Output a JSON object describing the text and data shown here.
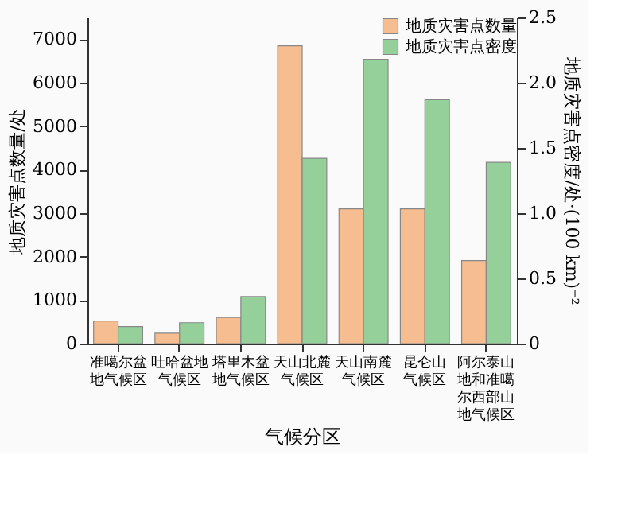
{
  "chart_data": {
    "type": "bar",
    "xlabel": "气候分区",
    "ylabel": "地质灾害点数量/处",
    "y2label": "地质灾害点密度/处·(100 km)⁻²",
    "categories": [
      "准噶尔盆地气候区",
      "吐哈盆地气候区",
      "塔里木盆地气候区",
      "天山北麓气候区",
      "天山南麓气候区",
      "昆仑山气候区",
      "阿尔泰山地和准噶尔西部山地气候区"
    ],
    "series": [
      {
        "name": "地质灾害点数量",
        "color": "#f5bd90",
        "values": [
          520,
          240,
          600,
          6850,
          3100,
          3100,
          1910
        ]
      },
      {
        "name": "地质灾害点密度",
        "color": "#95d09b",
        "axis": "y2",
        "values": [
          0.13,
          0.16,
          0.36,
          1.42,
          2.18,
          1.87,
          1.39
        ]
      }
    ],
    "ylim": [
      0,
      7500
    ],
    "yticks": [
      0,
      1000,
      2000,
      3000,
      4000,
      5000,
      6000,
      7000
    ],
    "y2lim": [
      0,
      2.5
    ],
    "y2ticks": [
      0,
      {
        "value": 0.5,
        "label": "0.5"
      },
      {
        "value": 1,
        "label": "1.0"
      },
      {
        "value": 1.5,
        "label": "1.5"
      },
      {
        "value": 2,
        "label": "2.0"
      },
      {
        "value": 2.5,
        "label": "2.5"
      }
    ],
    "legend": "top right",
    "grid": false
  }
}
